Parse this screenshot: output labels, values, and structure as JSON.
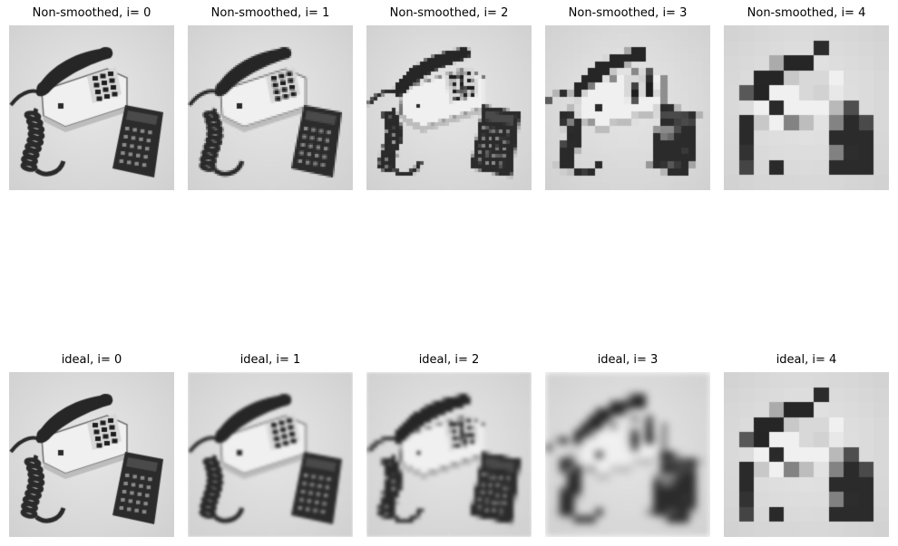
{
  "rows": [
    {
      "panels": [
        {
          "title": "Non-smoothed, i= 0",
          "level": 0,
          "smoothing": "none"
        },
        {
          "title": "Non-smoothed, i= 1",
          "level": 1,
          "smoothing": "none"
        },
        {
          "title": "Non-smoothed, i= 2",
          "level": 2,
          "smoothing": "none"
        },
        {
          "title": "Non-smoothed, i= 3",
          "level": 3,
          "smoothing": "none"
        },
        {
          "title": "Non-smoothed, i= 4",
          "level": 4,
          "smoothing": "none"
        }
      ]
    },
    {
      "panels": [
        {
          "title": "ideal, i= 0",
          "level": 0,
          "smoothing": "ideal"
        },
        {
          "title": "ideal, i= 1",
          "level": 1,
          "smoothing": "ideal"
        },
        {
          "title": "ideal, i= 2",
          "level": 2,
          "smoothing": "ideal"
        },
        {
          "title": "ideal, i= 3",
          "level": 3,
          "smoothing": "ideal"
        },
        {
          "title": "ideal, i= 4",
          "level": 4,
          "smoothing": "ideal"
        }
      ]
    }
  ],
  "colors": {
    "background": "#ffffff",
    "text": "#000000"
  }
}
